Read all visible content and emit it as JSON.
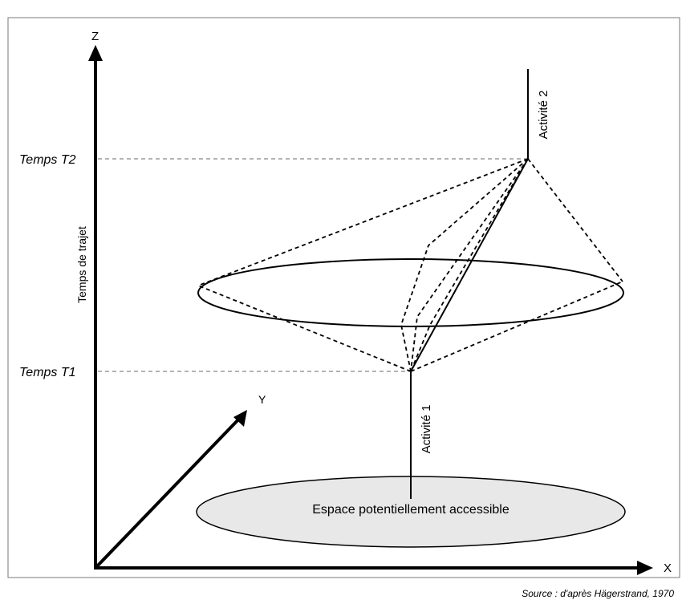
{
  "axes": {
    "z": "Z",
    "x": "X",
    "y": "Y"
  },
  "time_axis_label": "Temps de trajet",
  "time_markers": {
    "t2": "Temps T2",
    "t1": "Temps T1"
  },
  "activities": {
    "activity1": "Activité 1",
    "activity2": "Activité 2"
  },
  "base_region_label": "Espace potentiellement accessible",
  "source": "Source : d'après Hägerstrand, 1970",
  "colors": {
    "stroke": "#000000",
    "guide": "#888888",
    "base_fill": "#e8e8e8"
  }
}
